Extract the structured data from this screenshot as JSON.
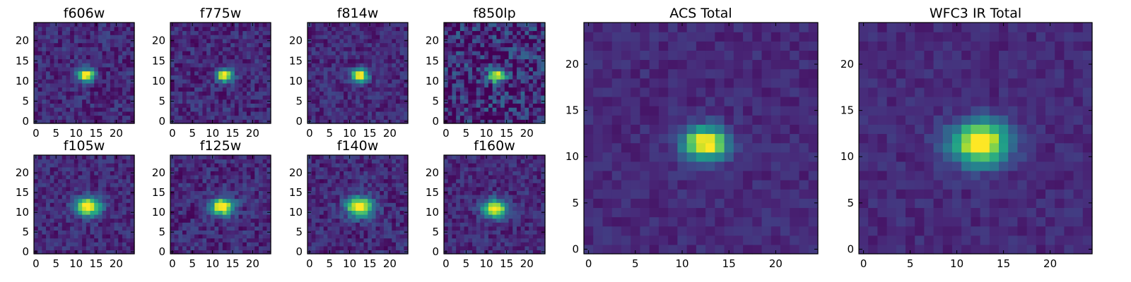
{
  "chart_data": [
    {
      "type": "heatmap",
      "title": "f606w",
      "xticks": [
        0,
        5,
        10,
        15,
        20
      ],
      "yticks": [
        0,
        5,
        10,
        15,
        20
      ],
      "xlim": [
        0,
        24
      ],
      "ylim": [
        0,
        24
      ],
      "grid": false,
      "source_center": [
        12.5,
        11.5
      ],
      "source_peak": 1.0,
      "source_width": 2.0,
      "noise": 0.22
    },
    {
      "type": "heatmap",
      "title": "f775w",
      "xticks": [
        0,
        5,
        10,
        15,
        20
      ],
      "yticks": [
        0,
        5,
        10,
        15,
        20
      ],
      "xlim": [
        0,
        24
      ],
      "ylim": [
        0,
        24
      ],
      "grid": false,
      "source_center": [
        13.0,
        11.5
      ],
      "source_peak": 1.0,
      "source_width": 2.0,
      "noise": 0.22
    },
    {
      "type": "heatmap",
      "title": "f814w",
      "xticks": [
        0,
        5,
        10,
        15,
        20
      ],
      "yticks": [
        0,
        5,
        10,
        15,
        20
      ],
      "xlim": [
        0,
        24
      ],
      "ylim": [
        0,
        24
      ],
      "grid": false,
      "source_center": [
        12.5,
        11.5
      ],
      "source_peak": 1.0,
      "source_width": 2.0,
      "noise": 0.2
    },
    {
      "type": "heatmap",
      "title": "f850lp",
      "xticks": [
        0,
        5,
        10,
        15,
        20
      ],
      "yticks": [
        0,
        5,
        10,
        15,
        20
      ],
      "xlim": [
        0,
        24
      ],
      "ylim": [
        0,
        24
      ],
      "grid": false,
      "source_center": [
        12.5,
        11.5
      ],
      "source_peak": 0.85,
      "source_width": 2.2,
      "noise": 0.45
    },
    {
      "type": "heatmap",
      "title": "f105w",
      "xticks": [
        0,
        5,
        10,
        15,
        20
      ],
      "yticks": [
        0,
        5,
        10,
        15,
        20
      ],
      "xlim": [
        0,
        24
      ],
      "ylim": [
        0,
        24
      ],
      "grid": false,
      "source_center": [
        13.0,
        11.5
      ],
      "source_peak": 1.0,
      "source_width": 3.0,
      "noise": 0.2
    },
    {
      "type": "heatmap",
      "title": "f125w",
      "xticks": [
        0,
        5,
        10,
        15,
        20
      ],
      "yticks": [
        0,
        5,
        10,
        15,
        20
      ],
      "xlim": [
        0,
        24
      ],
      "ylim": [
        0,
        24
      ],
      "grid": false,
      "source_center": [
        12.5,
        11.5
      ],
      "source_peak": 1.0,
      "source_width": 2.8,
      "noise": 0.22
    },
    {
      "type": "heatmap",
      "title": "f140w",
      "xticks": [
        0,
        5,
        10,
        15,
        20
      ],
      "yticks": [
        0,
        5,
        10,
        15,
        20
      ],
      "xlim": [
        0,
        24
      ],
      "ylim": [
        0,
        24
      ],
      "grid": false,
      "source_center": [
        12.5,
        11.5
      ],
      "source_peak": 1.0,
      "source_width": 3.2,
      "noise": 0.22
    },
    {
      "type": "heatmap",
      "title": "f160w",
      "xticks": [
        0,
        5,
        10,
        15,
        20
      ],
      "yticks": [
        0,
        5,
        10,
        15,
        20
      ],
      "xlim": [
        0,
        24
      ],
      "ylim": [
        0,
        24
      ],
      "grid": false,
      "source_center": [
        12.0,
        11.0
      ],
      "source_peak": 1.0,
      "source_width": 2.8,
      "noise": 0.2
    },
    {
      "type": "heatmap",
      "title": "ACS Total",
      "xticks": [
        0,
        5,
        10,
        15,
        20
      ],
      "yticks": [
        0,
        5,
        10,
        15,
        20
      ],
      "xlim": [
        0,
        24
      ],
      "ylim": [
        0,
        24
      ],
      "grid": false,
      "source_center": [
        12.5,
        11.5
      ],
      "source_peak": 1.0,
      "source_width": 2.2,
      "noise": 0.12
    },
    {
      "type": "heatmap",
      "title": "WFC3 IR Total",
      "xticks": [
        0,
        5,
        10,
        15,
        20
      ],
      "yticks": [
        0,
        5,
        10,
        15,
        20
      ],
      "xlim": [
        0,
        24
      ],
      "ylim": [
        0,
        24
      ],
      "grid": false,
      "source_center": [
        12.5,
        11.5
      ],
      "source_peak": 1.0,
      "source_width": 3.0,
      "noise": 0.12
    }
  ],
  "colormap": [
    "#440154",
    "#482878",
    "#3e4989",
    "#31688e",
    "#26828e",
    "#1f9e89",
    "#35b779",
    "#6ece58",
    "#b5de2b",
    "#fde725"
  ]
}
